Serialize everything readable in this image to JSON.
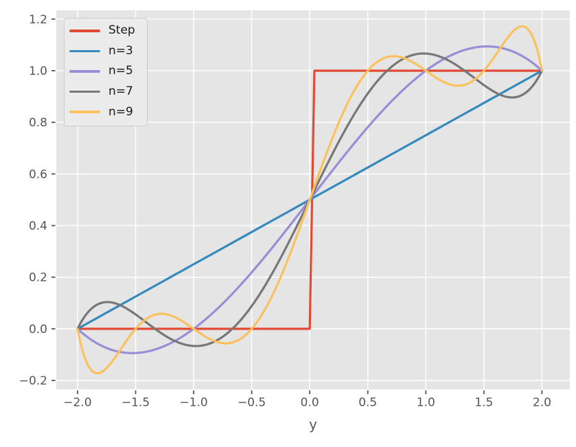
{
  "style": {
    "figure_bg": "#FFFFFF",
    "plot_bg": "#E5E5E5",
    "grid_color": "#FFFFFF",
    "tick_color": "#555555",
    "tick_label_color": "#555555",
    "axis_label_color": "#555555",
    "legend_bg": "#EBEBEB",
    "legend_border": "#CCCCCC",
    "legend_text_color": "#1A1A1A"
  },
  "chart_data": {
    "type": "line",
    "title": "",
    "xlabel": "y",
    "ylabel": "",
    "xlim": [
      -2.183,
      2.24
    ],
    "ylim": [
      -0.2344,
      1.234
    ],
    "xticks": [
      -2.0,
      -1.5,
      -1.0,
      -0.5,
      0.0,
      0.5,
      1.0,
      1.5,
      2.0
    ],
    "xtick_labels": [
      "−2.0",
      "−1.5",
      "−1.0",
      "−0.5",
      "0.0",
      "0.5",
      "1.0",
      "1.5",
      "2.0"
    ],
    "yticks": [
      -0.2,
      0.0,
      0.2,
      0.4,
      0.6,
      0.8,
      1.0,
      1.2
    ],
    "ytick_labels": [
      "−0.2",
      "0.0",
      "0.2",
      "0.4",
      "0.6",
      "0.8",
      "1.0",
      "1.2"
    ],
    "grid": true,
    "legend_position": "upper-left",
    "line_width": 3.2,
    "series": [
      {
        "name": "Step",
        "color": "#E24A33",
        "kind": "step",
        "x": [
          -2.0,
          0.0,
          0.04,
          2.0
        ],
        "y": [
          0.0,
          0.0,
          1.0,
          1.0
        ]
      },
      {
        "name": "n=3",
        "color": "#348ABD",
        "kind": "polynomial",
        "coeffs": [
          0.5,
          0.25
        ],
        "domain": [
          -2.0,
          2.0
        ],
        "endpoints": {
          "x": [
            -2.0,
            2.0
          ],
          "y": [
            0.0,
            1.0
          ]
        }
      },
      {
        "name": "n=5",
        "color": "#988ED5",
        "kind": "polynomial",
        "coeffs": [
          0.5,
          0.5833333,
          0.0,
          -0.0833333
        ],
        "domain": [
          -2.0,
          2.0
        ],
        "extrema": {
          "x": [
            -1.528,
            1.528
          ],
          "y": [
            -0.094,
            1.094
          ]
        }
      },
      {
        "name": "n=7",
        "color": "#777777",
        "kind": "polynomial",
        "coeffs": [
          0.5,
          0.925,
          0.0,
          -0.421875,
          0.0,
          0.06328125
        ],
        "domain": [
          -2.0,
          2.0
        ],
        "extrema": {
          "x": [
            -1.743,
            -0.981,
            0.981,
            1.743
          ],
          "y": [
            0.104,
            -0.067,
            1.067,
            0.896
          ]
        }
      },
      {
        "name": "n=9",
        "color": "#FBC15E",
        "kind": "polynomial",
        "coeffs": [
          0.5,
          1.2690476,
          0.0,
          -1.1944444,
          0.0,
          0.4888889,
          0.0,
          -0.0634921
        ],
        "domain": [
          -2.0,
          2.0
        ],
        "extrema": {
          "x": [
            -1.85,
            -1.3,
            -0.72,
            0.72,
            1.3,
            1.85
          ],
          "y": [
            -0.17,
            0.057,
            -0.055,
            1.055,
            0.943,
            1.17
          ]
        }
      }
    ]
  }
}
